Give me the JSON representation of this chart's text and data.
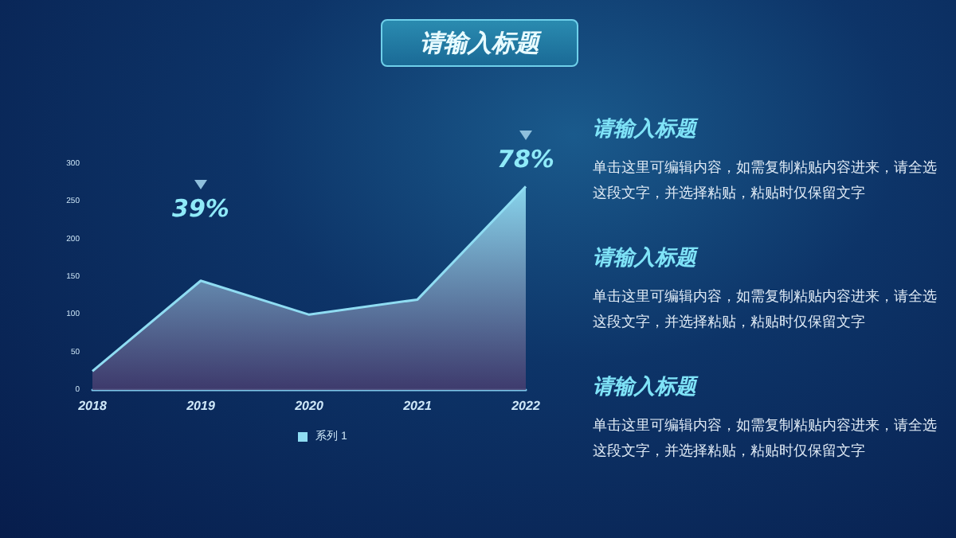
{
  "chart_data": {
    "type": "area",
    "title": "请输入标题",
    "categories": [
      "2018",
      "2019",
      "2020",
      "2021",
      "2022"
    ],
    "series": [
      {
        "name": "系列 1",
        "color": "#8fdcf2",
        "values": [
          25,
          145,
          100,
          120,
          270
        ]
      }
    ],
    "ylim": [
      0,
      300
    ],
    "yticks": [
      0,
      50,
      100,
      150,
      200,
      250,
      300
    ],
    "grid": false,
    "legend": "bottom",
    "marker": "none",
    "annotations": [
      {
        "text": "39%",
        "x": "2019",
        "y": 145
      },
      {
        "text": "78%",
        "x": "2022",
        "y": 270
      },
      "请输入标题",
      "单击这里可编辑内容，如需复制粘贴内容进来，请全选这段文字，并选择粘贴，粘贴时仅保留文字",
      "请输入标题",
      "单击这里可编辑内容，如需复制粘贴内容进来，请全选这段文字，并选择粘贴，粘贴时仅保留文字",
      "请输入标题",
      "单击这里可编辑内容，如需复制粘贴内容进来，请全选这段文字，并选择粘贴，粘贴时仅保留文字"
    ]
  }
}
